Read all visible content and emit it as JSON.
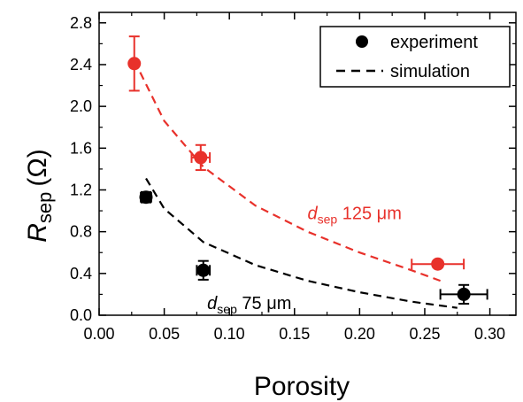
{
  "chart_data": {
    "type": "scatter",
    "xlabel": "Porosity",
    "ylabel_main": "R",
    "ylabel_sub": "sep",
    "ylabel_unit": "(Ω)",
    "xlim": [
      0.0,
      0.32
    ],
    "ylim": [
      0.0,
      2.9
    ],
    "xticks": [
      "0.00",
      "0.05",
      "0.10",
      "0.15",
      "0.20",
      "0.25",
      "0.30"
    ],
    "yticks": [
      "0.0",
      "0.4",
      "0.8",
      "1.2",
      "1.6",
      "2.0",
      "2.4",
      "2.8"
    ],
    "grid": false,
    "legend_position": "top-right",
    "legend": [
      {
        "label": "experiment",
        "kind": "marker"
      },
      {
        "label": "simulation",
        "kind": "dashed-line"
      }
    ],
    "series": [
      {
        "color": "#e8312b",
        "points": [
          {
            "x": 0.027,
            "y": 2.41,
            "yerr": 0.26,
            "xerr": 0
          },
          {
            "x": 0.078,
            "y": 1.51,
            "yerr": 0.12,
            "xerr": 0.007
          },
          {
            "x": 0.26,
            "y": 0.49,
            "yerr": 0.03,
            "xerr": 0.02
          }
        ],
        "simulation": [
          [
            0.027,
            2.44
          ],
          [
            0.05,
            1.86
          ],
          [
            0.08,
            1.42
          ],
          [
            0.12,
            1.05
          ],
          [
            0.16,
            0.8
          ],
          [
            0.2,
            0.6
          ],
          [
            0.24,
            0.43
          ],
          [
            0.262,
            0.33
          ]
        ],
        "annotation": {
          "var": "d",
          "sub": "sep",
          "text": " 125 μm",
          "x": 0.16,
          "y": 0.92
        }
      },
      {
        "color": "#000000",
        "points": [
          {
            "x": 0.036,
            "y": 1.13,
            "yerr": 0.05,
            "xerr": 0.004
          },
          {
            "x": 0.08,
            "y": 0.43,
            "yerr": 0.09,
            "xerr": 0.005
          },
          {
            "x": 0.28,
            "y": 0.2,
            "yerr": 0.09,
            "xerr": 0.018
          }
        ],
        "simulation": [
          [
            0.036,
            1.31
          ],
          [
            0.05,
            1.02
          ],
          [
            0.08,
            0.7
          ],
          [
            0.12,
            0.48
          ],
          [
            0.16,
            0.33
          ],
          [
            0.2,
            0.22
          ],
          [
            0.24,
            0.13
          ],
          [
            0.275,
            0.07
          ]
        ],
        "annotation": {
          "var": "d",
          "sub": "sep",
          "text": " 75 μm",
          "x": 0.083,
          "y": 0.06
        }
      }
    ]
  }
}
